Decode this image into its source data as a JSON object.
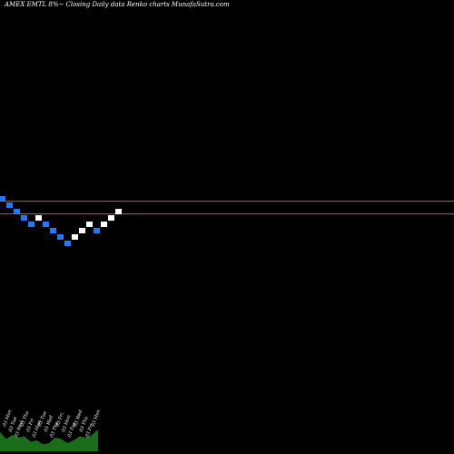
{
  "title": "AMEX EMTL 8%~ Closing Daily data Renko charts MunafaSutra.com",
  "colors": {
    "background": "#000000",
    "up_brick": "#ffffff",
    "down_brick": "#1e7bff",
    "reference_line": "#c0622a",
    "volume_area": "#1a6e1a"
  },
  "chart_data": {
    "type": "renko",
    "title": "AMEX EMTL 8%~ Closing Daily data Renko charts MunafaSutra.com",
    "bricks": [
      {
        "dir": "down",
        "level": 8
      },
      {
        "dir": "down",
        "level": 7
      },
      {
        "dir": "down",
        "level": 6
      },
      {
        "dir": "down",
        "level": 5
      },
      {
        "dir": "down",
        "level": 4
      },
      {
        "dir": "up",
        "level": 5
      },
      {
        "dir": "down",
        "level": 4
      },
      {
        "dir": "down",
        "level": 3
      },
      {
        "dir": "down",
        "level": 2
      },
      {
        "dir": "down",
        "level": 1
      },
      {
        "dir": "up",
        "level": 2
      },
      {
        "dir": "up",
        "level": 3
      },
      {
        "dir": "up",
        "level": 4
      },
      {
        "dir": "down",
        "level": 3
      },
      {
        "dir": "up",
        "level": 4
      },
      {
        "dir": "up",
        "level": 5
      },
      {
        "dir": "up",
        "level": 6
      }
    ],
    "reference_levels": [
      7.2,
      5.2
    ],
    "date_labels": [
      "03 Mon",
      "03 Tue",
      "03 Wed",
      "03 Thu",
      "03 Fri",
      "03 Mon",
      "03 Tue",
      "03 Wed",
      "03 Thu",
      "03 Fri",
      "03 Mon",
      "03 Tue",
      "03 Wed",
      "03 Thu",
      "03 Fri",
      "03 Mon"
    ],
    "volume": [
      0.7,
      0.45,
      0.6,
      0.5,
      0.55,
      0.35,
      0.4,
      0.25,
      0.3,
      0.5,
      0.45,
      0.3,
      0.4,
      0.55,
      0.5,
      0.6,
      0.8
    ]
  }
}
